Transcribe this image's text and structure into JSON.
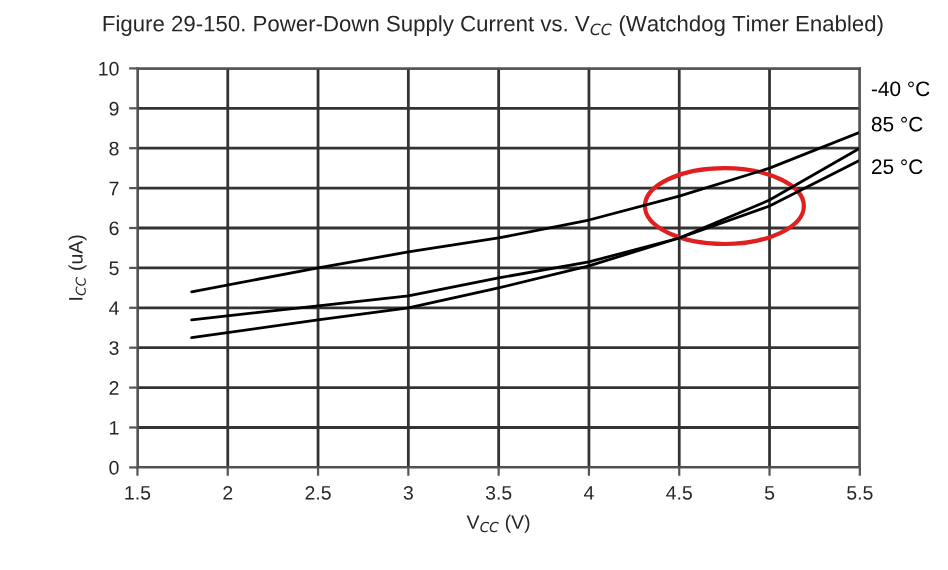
{
  "chart_data": {
    "type": "line",
    "title": "Figure 29-150. Power-Down Supply Current vs. V$_{CC}$ (Watchdog Timer Enabled)",
    "xlabel": "V$_{CC}$ (V)",
    "ylabel": "I$_{CC}$ (uA)",
    "x": [
      1.8,
      2.5,
      3.0,
      3.5,
      4.0,
      4.5,
      5.0,
      5.5
    ],
    "series": [
      {
        "name": "-40 °C",
        "color": "#000000",
        "values": [
          4.4,
          5.0,
          5.4,
          5.75,
          6.2,
          6.8,
          7.5,
          8.4
        ]
      },
      {
        "name": "85 °C",
        "color": "#000000",
        "values": [
          3.7,
          4.05,
          4.3,
          4.75,
          5.15,
          5.75,
          6.7,
          8.0
        ]
      },
      {
        "name": "25 °C",
        "color": "#000000",
        "values": [
          3.25,
          3.7,
          4.0,
          4.5,
          5.05,
          5.75,
          6.55,
          7.7
        ]
      }
    ],
    "xlim": [
      1.5,
      5.5
    ],
    "xticks": [
      1.5,
      2,
      2.5,
      3,
      3.5,
      4,
      4.5,
      5,
      5.5
    ],
    "ylim": [
      0,
      10
    ],
    "yticks": [
      0,
      1,
      2,
      3,
      4,
      5,
      6,
      7,
      8,
      9,
      10
    ],
    "grid": true,
    "line_style": "solid",
    "marker": "none"
  }
}
